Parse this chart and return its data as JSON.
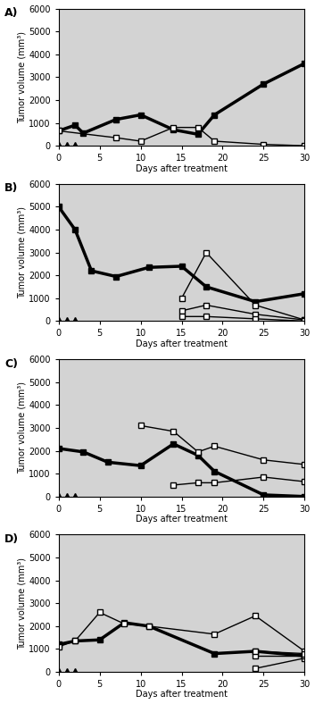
{
  "panels": [
    {
      "label": "A)",
      "bg_color": "#d3d3d3",
      "series": [
        {
          "x": [
            0,
            2,
            3,
            7,
            10,
            14,
            17,
            19,
            25,
            30
          ],
          "y": [
            650,
            900,
            550,
            1150,
            1350,
            700,
            500,
            1350,
            2700,
            3600
          ],
          "marker": "s",
          "filled": true,
          "linewidth": 2.5,
          "color": "black",
          "markersize": 5
        },
        {
          "x": [
            0,
            7,
            10,
            14,
            17,
            19,
            25,
            30
          ],
          "y": [
            650,
            350,
            200,
            800,
            800,
            200,
            60,
            0
          ],
          "marker": "s",
          "filled": false,
          "linewidth": 1.0,
          "color": "black",
          "markersize": 5
        },
        {
          "x": [
            0,
            1,
            2
          ],
          "y": [
            0,
            0,
            0
          ],
          "marker": "^",
          "filled": true,
          "linewidth": 0,
          "color": "black",
          "markersize": 6,
          "linestyle": "none"
        }
      ]
    },
    {
      "label": "B)",
      "bg_color": "#d3d3d3",
      "series": [
        {
          "x": [
            0,
            2,
            4,
            7,
            11,
            15,
            18,
            24,
            30
          ],
          "y": [
            5000,
            4000,
            2200,
            1950,
            2350,
            2400,
            1500,
            850,
            1200
          ],
          "marker": "s",
          "filled": true,
          "linewidth": 2.5,
          "color": "black",
          "markersize": 5
        },
        {
          "x": [
            15,
            18,
            24,
            30
          ],
          "y": [
            1000,
            3000,
            700,
            50
          ],
          "marker": "s",
          "filled": false,
          "linewidth": 1.0,
          "color": "black",
          "markersize": 5
        },
        {
          "x": [
            15,
            18,
            24,
            30
          ],
          "y": [
            450,
            700,
            300,
            50
          ],
          "marker": "s",
          "filled": false,
          "linewidth": 1.0,
          "color": "black",
          "markersize": 5
        },
        {
          "x": [
            15,
            18,
            24,
            30
          ],
          "y": [
            200,
            200,
            100,
            0
          ],
          "marker": "s",
          "filled": false,
          "linewidth": 1.0,
          "color": "black",
          "markersize": 5
        },
        {
          "x": [
            0,
            1,
            2
          ],
          "y": [
            0,
            0,
            0
          ],
          "marker": "^",
          "filled": true,
          "linewidth": 0,
          "color": "black",
          "markersize": 6,
          "linestyle": "none"
        }
      ]
    },
    {
      "label": "C)",
      "bg_color": "#d3d3d3",
      "series": [
        {
          "x": [
            0,
            3,
            6,
            10,
            14,
            17,
            19,
            25,
            30
          ],
          "y": [
            2100,
            1950,
            1500,
            1350,
            2300,
            1800,
            1100,
            70,
            0
          ],
          "marker": "s",
          "filled": true,
          "linewidth": 2.5,
          "color": "black",
          "markersize": 5
        },
        {
          "x": [
            10,
            14,
            17,
            19,
            25,
            30
          ],
          "y": [
            3100,
            2850,
            1950,
            2200,
            1600,
            1400
          ],
          "marker": "s",
          "filled": false,
          "linewidth": 1.0,
          "color": "black",
          "markersize": 5
        },
        {
          "x": [
            14,
            17,
            19,
            25,
            30
          ],
          "y": [
            500,
            600,
            600,
            850,
            650
          ],
          "marker": "s",
          "filled": false,
          "linewidth": 1.0,
          "color": "black",
          "markersize": 5
        },
        {
          "x": [
            0,
            1,
            2
          ],
          "y": [
            0,
            0,
            0
          ],
          "marker": "^",
          "filled": true,
          "linewidth": 0,
          "color": "black",
          "markersize": 6,
          "linestyle": "none"
        }
      ]
    },
    {
      "label": "D)",
      "bg_color": "#d3d3d3",
      "series": [
        {
          "x": [
            0,
            2,
            5,
            8,
            11,
            19,
            24,
            30
          ],
          "y": [
            1200,
            1350,
            1400,
            2150,
            2000,
            800,
            900,
            700
          ],
          "marker": "s",
          "filled": true,
          "linewidth": 2.5,
          "color": "black",
          "markersize": 5
        },
        {
          "x": [
            0,
            2,
            5,
            8,
            11,
            19,
            24,
            30
          ],
          "y": [
            1100,
            1350,
            2600,
            2100,
            2000,
            1650,
            2450,
            900
          ],
          "marker": "s",
          "filled": false,
          "linewidth": 1.0,
          "color": "black",
          "markersize": 5
        },
        {
          "x": [
            24,
            30
          ],
          "y": [
            150,
            600
          ],
          "marker": "s",
          "filled": false,
          "linewidth": 1.0,
          "color": "black",
          "markersize": 5
        },
        {
          "x": [
            24,
            30
          ],
          "y": [
            700,
            700
          ],
          "marker": "s",
          "filled": false,
          "linewidth": 1.0,
          "color": "black",
          "markersize": 5
        },
        {
          "x": [
            24,
            30
          ],
          "y": [
            900,
            800
          ],
          "marker": "s",
          "filled": false,
          "linewidth": 1.0,
          "color": "black",
          "markersize": 5
        },
        {
          "x": [
            0,
            1,
            2
          ],
          "y": [
            0,
            0,
            0
          ],
          "marker": "^",
          "filled": true,
          "linewidth": 0,
          "color": "black",
          "markersize": 6,
          "linestyle": "none"
        }
      ]
    }
  ],
  "xlabel": "Days after treatment",
  "ylabel": "Tumor volume (mm³)",
  "ylim": [
    0,
    6000
  ],
  "yticks": [
    0,
    1000,
    2000,
    3000,
    4000,
    5000,
    6000
  ],
  "xlim": [
    0,
    30
  ],
  "xticks": [
    0,
    5,
    10,
    15,
    20,
    25,
    30
  ]
}
